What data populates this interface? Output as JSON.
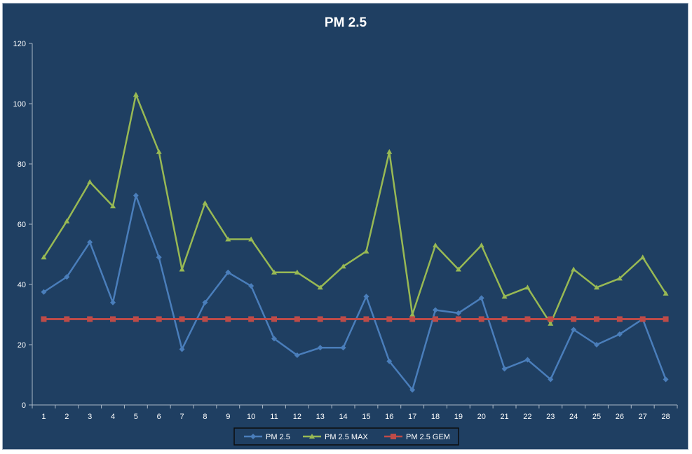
{
  "chart_data": {
    "type": "line",
    "title": "PM 2.5",
    "xlabel": "",
    "ylabel": "",
    "ylim": [
      0,
      120
    ],
    "yticks": [
      0,
      20,
      40,
      60,
      80,
      100,
      120
    ],
    "categories": [
      "1",
      "2",
      "3",
      "4",
      "5",
      "6",
      "7",
      "8",
      "9",
      "10",
      "11",
      "12",
      "13",
      "14",
      "15",
      "16",
      "17",
      "18",
      "19",
      "20",
      "21",
      "22",
      "23",
      "24",
      "25",
      "26",
      "27",
      "28"
    ],
    "grid": false,
    "legend_position": "bottom",
    "colors": {
      "background": "#1f3f62",
      "axis": "#a9b7c6"
    },
    "series": [
      {
        "name": "PM 2.5",
        "color": "#4a7ebb",
        "marker": "diamond",
        "values": [
          37.5,
          42.5,
          54,
          34,
          69.5,
          49,
          18.5,
          34,
          44,
          39.5,
          22,
          16.5,
          19,
          19,
          36,
          14.5,
          5,
          31.5,
          30.5,
          35.5,
          12,
          15,
          8.5,
          25,
          20,
          23.5,
          28.5,
          8.5
        ]
      },
      {
        "name": "PM 2.5 MAX",
        "color": "#98b954",
        "marker": "triangle",
        "values": [
          49,
          61,
          74,
          66,
          103,
          84,
          45,
          67,
          55,
          55,
          44,
          44,
          39,
          46,
          51,
          84,
          30,
          53,
          45,
          53,
          36,
          39,
          27,
          45,
          39,
          42,
          49,
          37
        ]
      },
      {
        "name": "PM 2.5 GEM",
        "color": "#be4b48",
        "marker": "square",
        "values": [
          28.5,
          28.5,
          28.5,
          28.5,
          28.5,
          28.5,
          28.5,
          28.5,
          28.5,
          28.5,
          28.5,
          28.5,
          28.5,
          28.5,
          28.5,
          28.5,
          28.5,
          28.5,
          28.5,
          28.5,
          28.5,
          28.5,
          28.5,
          28.5,
          28.5,
          28.5,
          28.5,
          28.5
        ]
      }
    ]
  }
}
